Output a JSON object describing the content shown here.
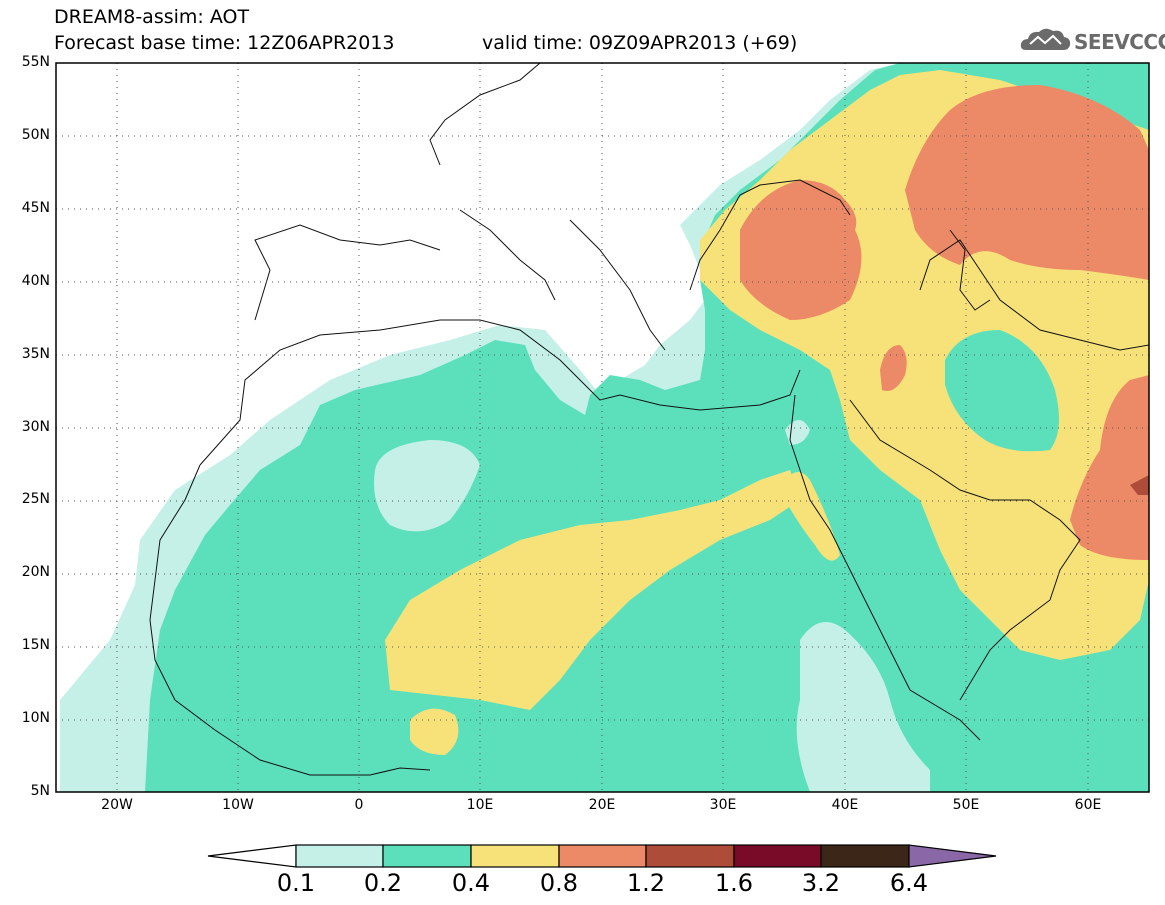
{
  "header": {
    "model_title": "DREAM8-assim: AOT",
    "base_time": "Forecast base time: 12Z06APR2013",
    "valid_time": "valid time: 09Z09APR2013 (+69)"
  },
  "logo": {
    "text": "SEEVCCC",
    "icon": "cloud-icon"
  },
  "map": {
    "lon_range": [
      -25,
      65
    ],
    "lat_range": [
      5,
      55
    ],
    "x_ticks": [
      "20W",
      "10W",
      "0",
      "10E",
      "20E",
      "30E",
      "40E",
      "50E",
      "60E"
    ],
    "y_ticks": [
      "55N",
      "50N",
      "45N",
      "40N",
      "35N",
      "30N",
      "25N",
      "20N",
      "15N",
      "10N",
      "5N"
    ],
    "grid": "dotted"
  },
  "colorbar": {
    "labels": [
      "0.1",
      "0.2",
      "0.4",
      "0.8",
      "1.2",
      "1.6",
      "3.2",
      "6.4"
    ],
    "colors": [
      "#ffffff",
      "#c4f0e8",
      "#5ce0bb",
      "#f7e27a",
      "#ec8966",
      "#ae4c3a",
      "#7a0b28",
      "#3b2618",
      "#8a68a8"
    ]
  },
  "colors": {
    "aot_0_1": "#c4f0e8",
    "aot_0_2": "#5ce0bb",
    "aot_0_4": "#f7e27a",
    "aot_0_8": "#ec8966",
    "aot_1_2": "#ae4c3a"
  }
}
